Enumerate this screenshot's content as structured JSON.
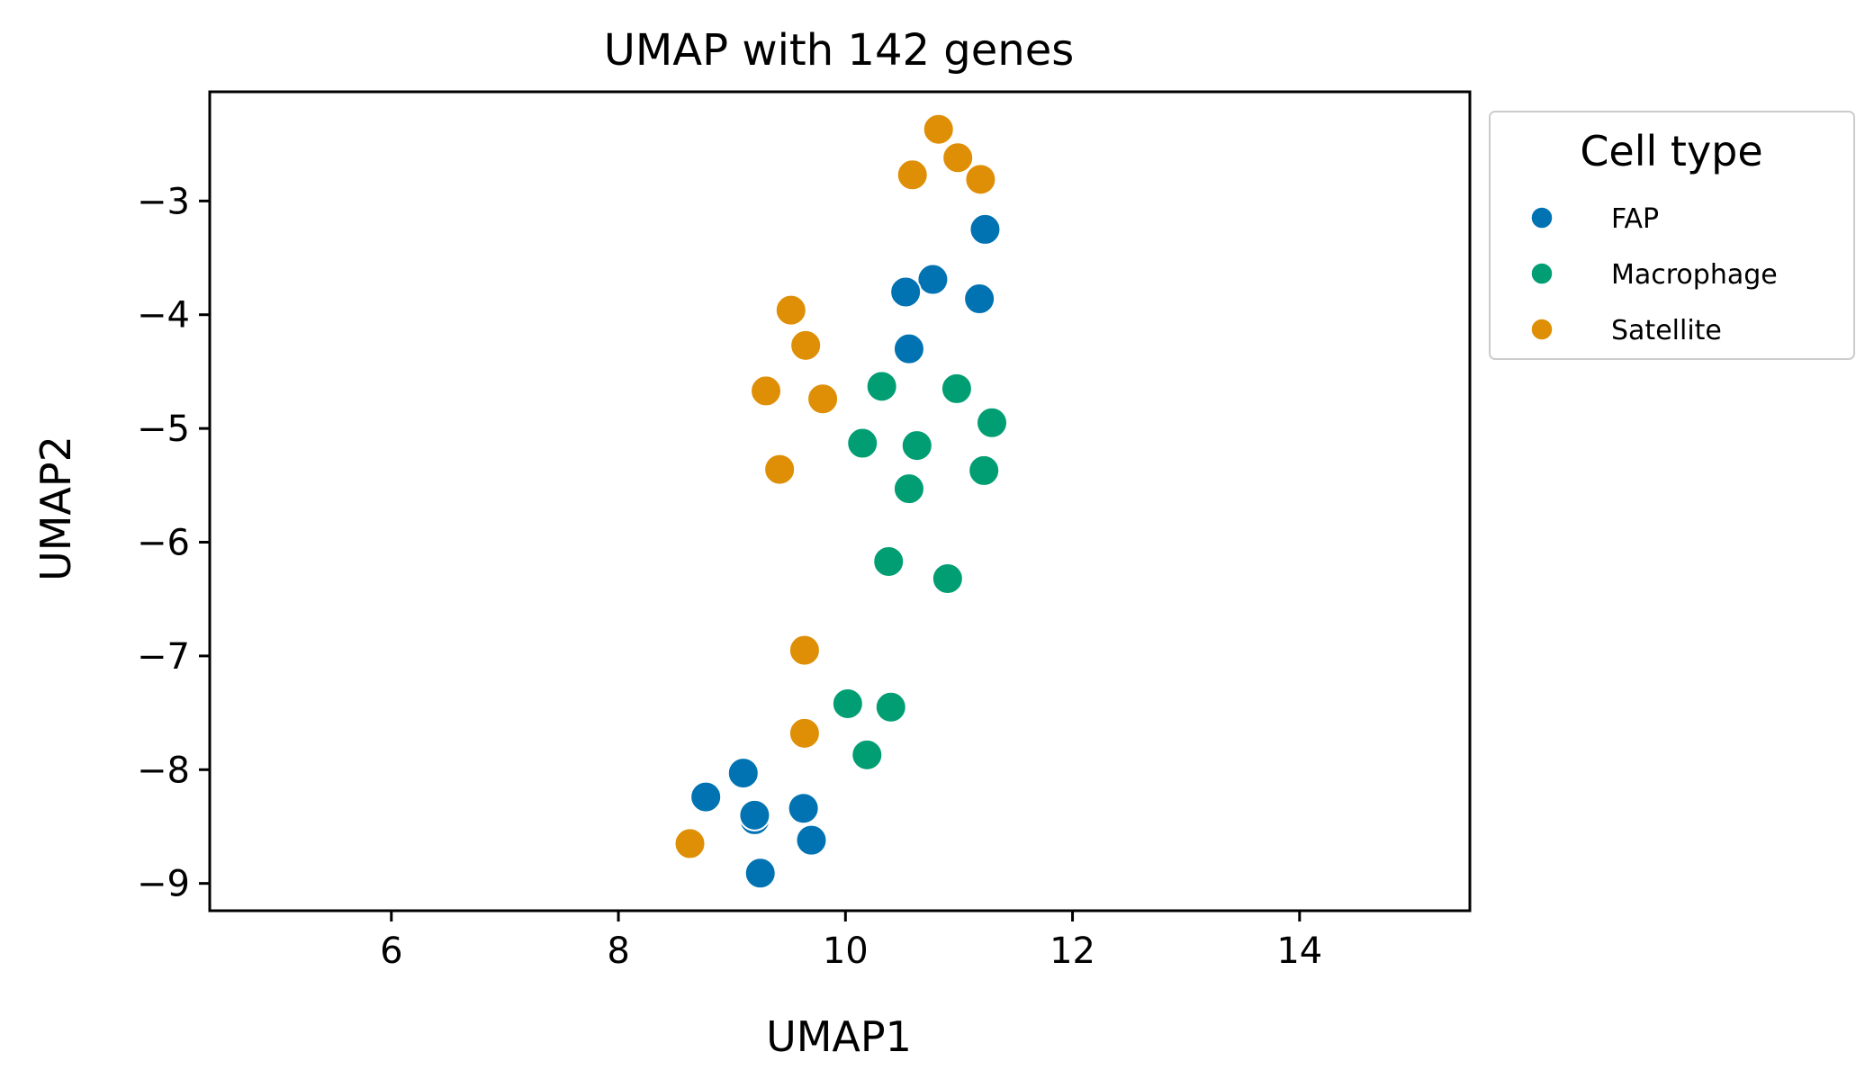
{
  "chart_data": {
    "type": "scatter",
    "title": "UMAP with 142 genes",
    "xlabel": "UMAP1",
    "ylabel": "UMAP2",
    "xlim": [
      4.4,
      15.5
    ],
    "ylim": [
      -9.24,
      -2.04
    ],
    "xticks": [
      6,
      8,
      10,
      12,
      14
    ],
    "xtick_labels": [
      "6",
      "8",
      "10",
      "12",
      "14"
    ],
    "yticks": [
      -3,
      -4,
      -5,
      -6,
      -7,
      -8,
      -9
    ],
    "ytick_labels": [
      "−3",
      "−4",
      "−5",
      "−6",
      "−7",
      "−8",
      "−9"
    ],
    "grid": false,
    "legend": {
      "title": "Cell type",
      "placement": "outside-upper-right"
    },
    "series": [
      {
        "name": "FAP",
        "color": "#0173b2",
        "points": [
          [
            11.23,
            -3.25
          ],
          [
            10.77,
            -3.69
          ],
          [
            10.53,
            -3.8
          ],
          [
            11.18,
            -3.86
          ],
          [
            10.56,
            -4.3
          ],
          [
            9.1,
            -8.03
          ],
          [
            8.77,
            -8.24
          ],
          [
            9.63,
            -8.34
          ],
          [
            9.2,
            -8.44
          ],
          [
            9.2,
            -8.4
          ],
          [
            9.7,
            -8.62
          ],
          [
            9.25,
            -8.91
          ]
        ]
      },
      {
        "name": "Macrophage",
        "color": "#029e73",
        "points": [
          [
            10.32,
            -4.63
          ],
          [
            10.98,
            -4.65
          ],
          [
            11.29,
            -4.95
          ],
          [
            10.15,
            -5.13
          ],
          [
            10.63,
            -5.15
          ],
          [
            11.22,
            -5.37
          ],
          [
            10.56,
            -5.53
          ],
          [
            10.38,
            -6.17
          ],
          [
            10.9,
            -6.32
          ],
          [
            10.02,
            -7.42
          ],
          [
            10.4,
            -7.45
          ],
          [
            10.19,
            -7.87
          ]
        ]
      },
      {
        "name": "Satellite",
        "color": "#de8f05",
        "points": [
          [
            10.82,
            -2.37
          ],
          [
            10.99,
            -2.62
          ],
          [
            10.59,
            -2.77
          ],
          [
            11.19,
            -2.81
          ],
          [
            9.52,
            -3.96
          ],
          [
            9.65,
            -4.27
          ],
          [
            9.3,
            -4.67
          ],
          [
            9.8,
            -4.74
          ],
          [
            9.42,
            -5.36
          ],
          [
            9.64,
            -6.95
          ],
          [
            9.64,
            -7.68
          ],
          [
            8.63,
            -8.65
          ]
        ]
      }
    ]
  }
}
